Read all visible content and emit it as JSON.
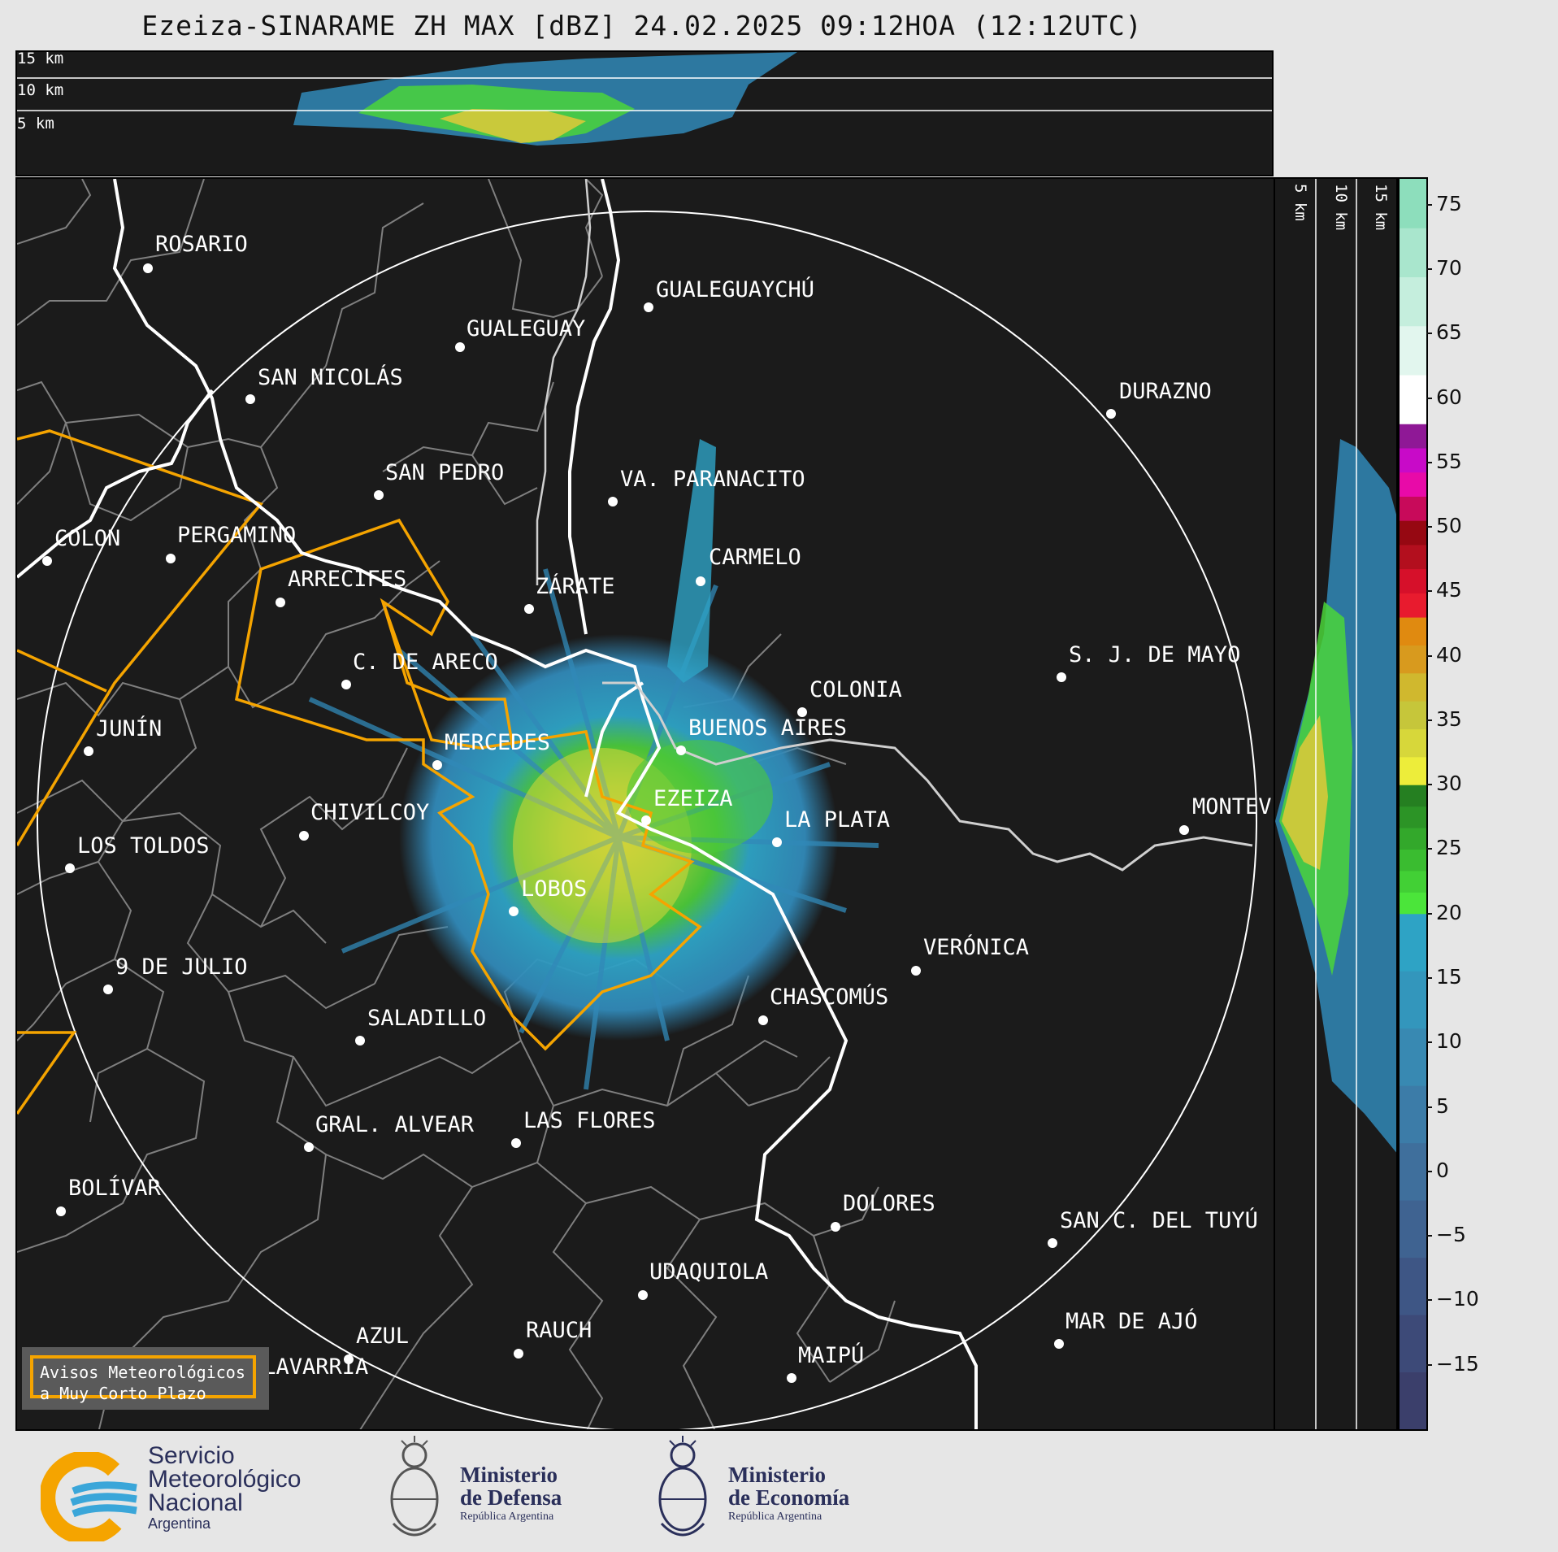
{
  "title": "Ezeiza-SINARAME ZH MAX [dBZ] 24.02.2025 09:12HOA (12:12UTC)",
  "top_panel": {
    "height_labels": [
      "15 km",
      "10 km",
      "5 km"
    ]
  },
  "side_panel": {
    "height_labels": [
      "5 km",
      "10 km",
      "15 km"
    ]
  },
  "colorbar": {
    "unit": "dBZ",
    "ticks": [
      "75",
      "70",
      "65",
      "60",
      "55",
      "50",
      "45",
      "40",
      "35",
      "30",
      "25",
      "20",
      "15",
      "10",
      "5",
      "0",
      "−5",
      "−10",
      "−15"
    ],
    "bands": [
      {
        "from": -20,
        "to": 20,
        "colors": [
          "#3b3f6b",
          "#3d4a78",
          "#3e5685",
          "#3f6391",
          "#3f6f9c",
          "#3c7ca8",
          "#3889b2",
          "#3396bc",
          "#2ea3c5"
        ]
      },
      {
        "from": 20,
        "to": 30,
        "colors": [
          "#4be53a",
          "#42d035",
          "#3abc30",
          "#33a82b",
          "#2c9426",
          "#257f21"
        ]
      },
      {
        "from": 30,
        "to": 43,
        "colors": [
          "#eded3a",
          "#d7d73a",
          "#c6c63a",
          "#d0b82e",
          "#d89a1e",
          "#e08a10"
        ]
      },
      {
        "from": 43,
        "to": 58,
        "colors": [
          "#e81b2e",
          "#d6102a",
          "#b30f1e",
          "#960812",
          "#c80a5a",
          "#e80aa8",
          "#c80ac8",
          "#8f1896"
        ]
      },
      {
        "from": 58,
        "to": 77,
        "colors": [
          "#ffffff",
          "#e2f6ee",
          "#c5eedd",
          "#a9e6cd",
          "#8ddebc"
        ]
      }
    ],
    "range": [
      -20,
      77
    ]
  },
  "cities": [
    {
      "name": "ROSARIO"
    },
    {
      "name": "GUALEGUAYCHÚ"
    },
    {
      "name": "GUALEGUAY"
    },
    {
      "name": "SAN NICOLÁS"
    },
    {
      "name": "DURAZNO"
    },
    {
      "name": "SAN PEDRO"
    },
    {
      "name": "VA. PARANACITO"
    },
    {
      "name": "COLON"
    },
    {
      "name": "PERGAMINO"
    },
    {
      "name": "CARMELO"
    },
    {
      "name": "ARRECIFES"
    },
    {
      "name": "ZÁRATE"
    },
    {
      "name": "S. J. DE MAYO"
    },
    {
      "name": "C. DE ARECO"
    },
    {
      "name": "COLONIA"
    },
    {
      "name": "JUNÍN"
    },
    {
      "name": "BUENOS AIRES"
    },
    {
      "name": "MERCEDES"
    },
    {
      "name": "MONTEV"
    },
    {
      "name": "EZEIZA"
    },
    {
      "name": "CHIVILCOY"
    },
    {
      "name": "LA PLATA"
    },
    {
      "name": "LOS TOLDOS"
    },
    {
      "name": "LOBOS"
    },
    {
      "name": "VERÓNICA"
    },
    {
      "name": "9 DE JULIO"
    },
    {
      "name": "CHASCOMÚS"
    },
    {
      "name": "SALADILLO"
    },
    {
      "name": "GRAL. ALVEAR"
    },
    {
      "name": "LAS FLORES"
    },
    {
      "name": "BOLÍVAR"
    },
    {
      "name": "DOLORES"
    },
    {
      "name": "SAN C. DEL TUYÚ"
    },
    {
      "name": "UDAQUIOLA"
    },
    {
      "name": "MAR DE AJÓ"
    },
    {
      "name": "AZUL"
    },
    {
      "name": "RAUCH"
    },
    {
      "name": "OLAVARRÍA"
    },
    {
      "name": "MAIPÚ"
    }
  ],
  "warning_box": {
    "line1": "Avisos Meteorológicos",
    "line2": "a Muy Corto Plazo",
    "border_color": "#f5a400"
  },
  "footer": {
    "smn": {
      "line1": "Servicio",
      "line2": "Meteorológico",
      "line3": "Nacional",
      "line4": "Argentina"
    },
    "defensa": {
      "line1": "Ministerio",
      "line2": "de Defensa",
      "line3": "República Argentina"
    },
    "economia": {
      "line1": "Ministerio",
      "line2": "de Economía",
      "line3": "República Argentina"
    }
  },
  "colors": {
    "background": "#1b1b1b",
    "coast": "#ffffff",
    "borders": "#8a8a8a",
    "warning_polygons": "#f5a400"
  }
}
